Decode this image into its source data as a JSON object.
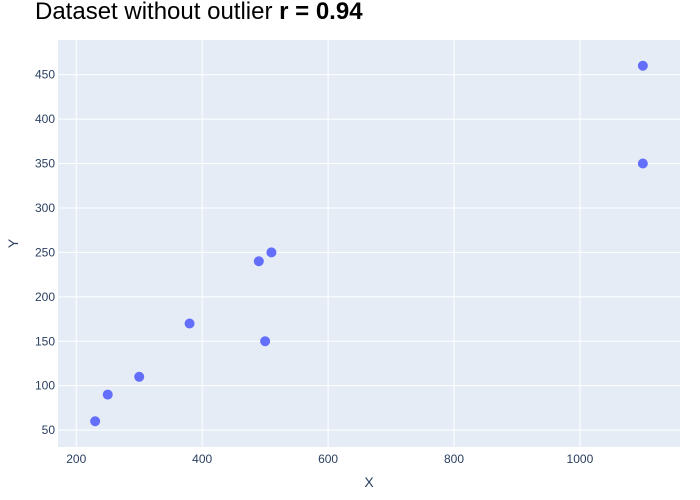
{
  "chart_data": {
    "type": "scatter",
    "title": "Dataset without outlier",
    "title_stat": "r = 0.94",
    "xlabel": "X",
    "ylabel": "Y",
    "xlim": [
      171,
      1159
    ],
    "ylim": [
      31,
      489
    ],
    "xticks": [
      200,
      400,
      600,
      800,
      1000
    ],
    "yticks": [
      50,
      100,
      150,
      200,
      250,
      300,
      350,
      400,
      450
    ],
    "grid": true,
    "marker_color": "#636efa",
    "plot_bg": "#e5ecf6",
    "points": [
      {
        "x": 230,
        "y": 60
      },
      {
        "x": 250,
        "y": 90
      },
      {
        "x": 300,
        "y": 110
      },
      {
        "x": 380,
        "y": 170
      },
      {
        "x": 490,
        "y": 240
      },
      {
        "x": 510,
        "y": 250
      },
      {
        "x": 500,
        "y": 150
      },
      {
        "x": 1100,
        "y": 350
      },
      {
        "x": 1100,
        "y": 460
      }
    ]
  }
}
